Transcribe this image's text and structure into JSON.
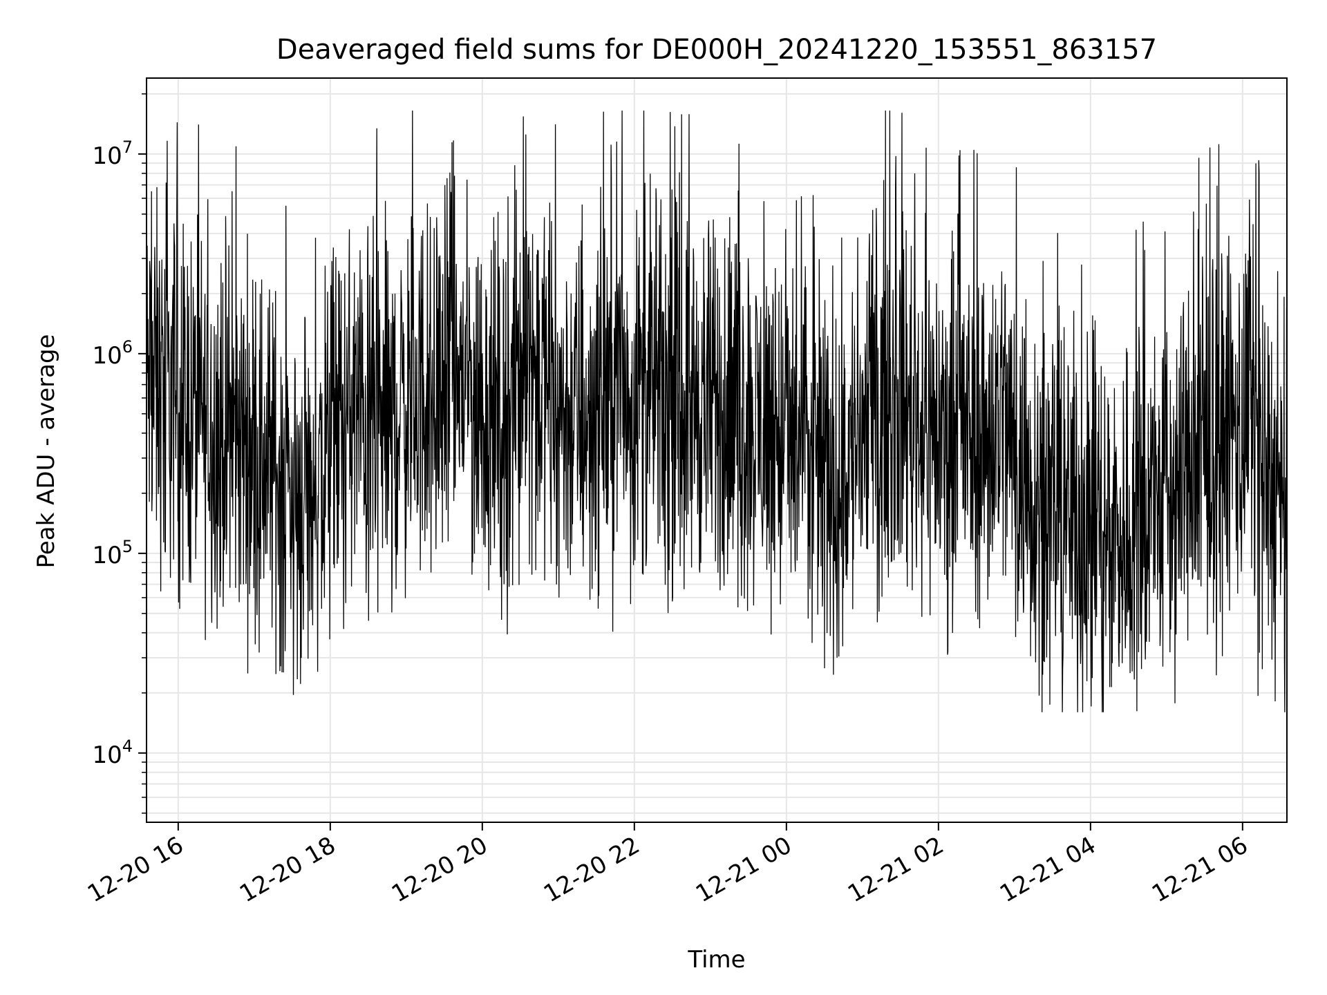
{
  "chart_data": {
    "type": "line",
    "title": "Deaveraged field sums for DE000H_20241220_153551_863157",
    "xlabel": "Time",
    "ylabel": "Peak ADU - average",
    "yscale": "log",
    "ylim": [
      4500,
      24000000
    ],
    "xlim": [
      "2024-12-20 15:35",
      "2024-12-21 06:35"
    ],
    "grid": "major and minor",
    "line_color": "#000000",
    "x_ticks": [
      "12-20 16",
      "12-20 18",
      "12-20 20",
      "12-20 22",
      "12-21 00",
      "12-21 02",
      "12-21 04",
      "12-21 06"
    ],
    "y_ticks": [
      {
        "base": "10",
        "exp": "4",
        "value": 10000
      },
      {
        "base": "10",
        "exp": "5",
        "value": 100000
      },
      {
        "base": "10",
        "exp": "6",
        "value": 1000000
      },
      {
        "base": "10",
        "exp": "7",
        "value": 10000000
      }
    ],
    "series": [
      {
        "x": [
          "2024-12-20 15:35",
          "2024-12-20 15:50",
          "2024-12-20 16:05",
          "2024-12-20 16:20",
          "2024-12-20 16:35",
          "2024-12-20 16:50",
          "2024-12-20 17:05",
          "2024-12-20 17:20",
          "2024-12-20 17:35",
          "2024-12-20 17:50",
          "2024-12-20 18:05",
          "2024-12-20 18:20",
          "2024-12-20 18:35",
          "2024-12-20 18:50",
          "2024-12-20 19:05",
          "2024-12-20 19:20",
          "2024-12-20 19:35",
          "2024-12-20 19:50",
          "2024-12-20 20:05",
          "2024-12-20 20:20",
          "2024-12-20 20:35",
          "2024-12-20 20:50",
          "2024-12-20 21:05",
          "2024-12-20 21:20",
          "2024-12-20 21:35",
          "2024-12-20 21:50",
          "2024-12-20 22:05",
          "2024-12-20 22:20",
          "2024-12-20 22:35",
          "2024-12-20 22:50",
          "2024-12-20 23:05",
          "2024-12-20 23:20",
          "2024-12-20 23:35",
          "2024-12-20 23:50",
          "2024-12-21 00:05",
          "2024-12-21 00:20",
          "2024-12-21 00:35",
          "2024-12-21 00:50",
          "2024-12-21 01:05",
          "2024-12-21 01:20",
          "2024-12-21 01:35",
          "2024-12-21 01:50",
          "2024-12-21 02:05",
          "2024-12-21 02:20",
          "2024-12-21 02:35",
          "2024-12-21 02:50",
          "2024-12-21 03:05",
          "2024-12-21 03:20",
          "2024-12-21 03:35",
          "2024-12-21 03:50",
          "2024-12-21 04:05",
          "2024-12-21 04:20",
          "2024-12-21 04:35",
          "2024-12-21 04:50",
          "2024-12-21 05:05",
          "2024-12-21 05:20",
          "2024-12-21 05:35",
          "2024-12-21 05:50",
          "2024-12-21 06:05",
          "2024-12-21 06:20",
          "2024-12-21 06:35"
        ],
        "values": [
          700000,
          650000,
          550000,
          450000,
          400000,
          380000,
          330000,
          250000,
          200000,
          220000,
          450000,
          500000,
          450000,
          500000,
          600000,
          650000,
          800000,
          700000,
          500000,
          450000,
          1300000,
          650000,
          500000,
          480000,
          600000,
          700000,
          700000,
          600000,
          550000,
          600000,
          500000,
          480000,
          450000,
          420000,
          350000,
          300000,
          280000,
          300000,
          500000,
          600000,
          550000,
          450000,
          400000,
          380000,
          380000,
          550000,
          250000,
          200000,
          170000,
          150000,
          140000,
          130000,
          150000,
          170000,
          200000,
          280000,
          350000,
          400000,
          500000,
          250000,
          100000
        ]
      }
    ]
  }
}
